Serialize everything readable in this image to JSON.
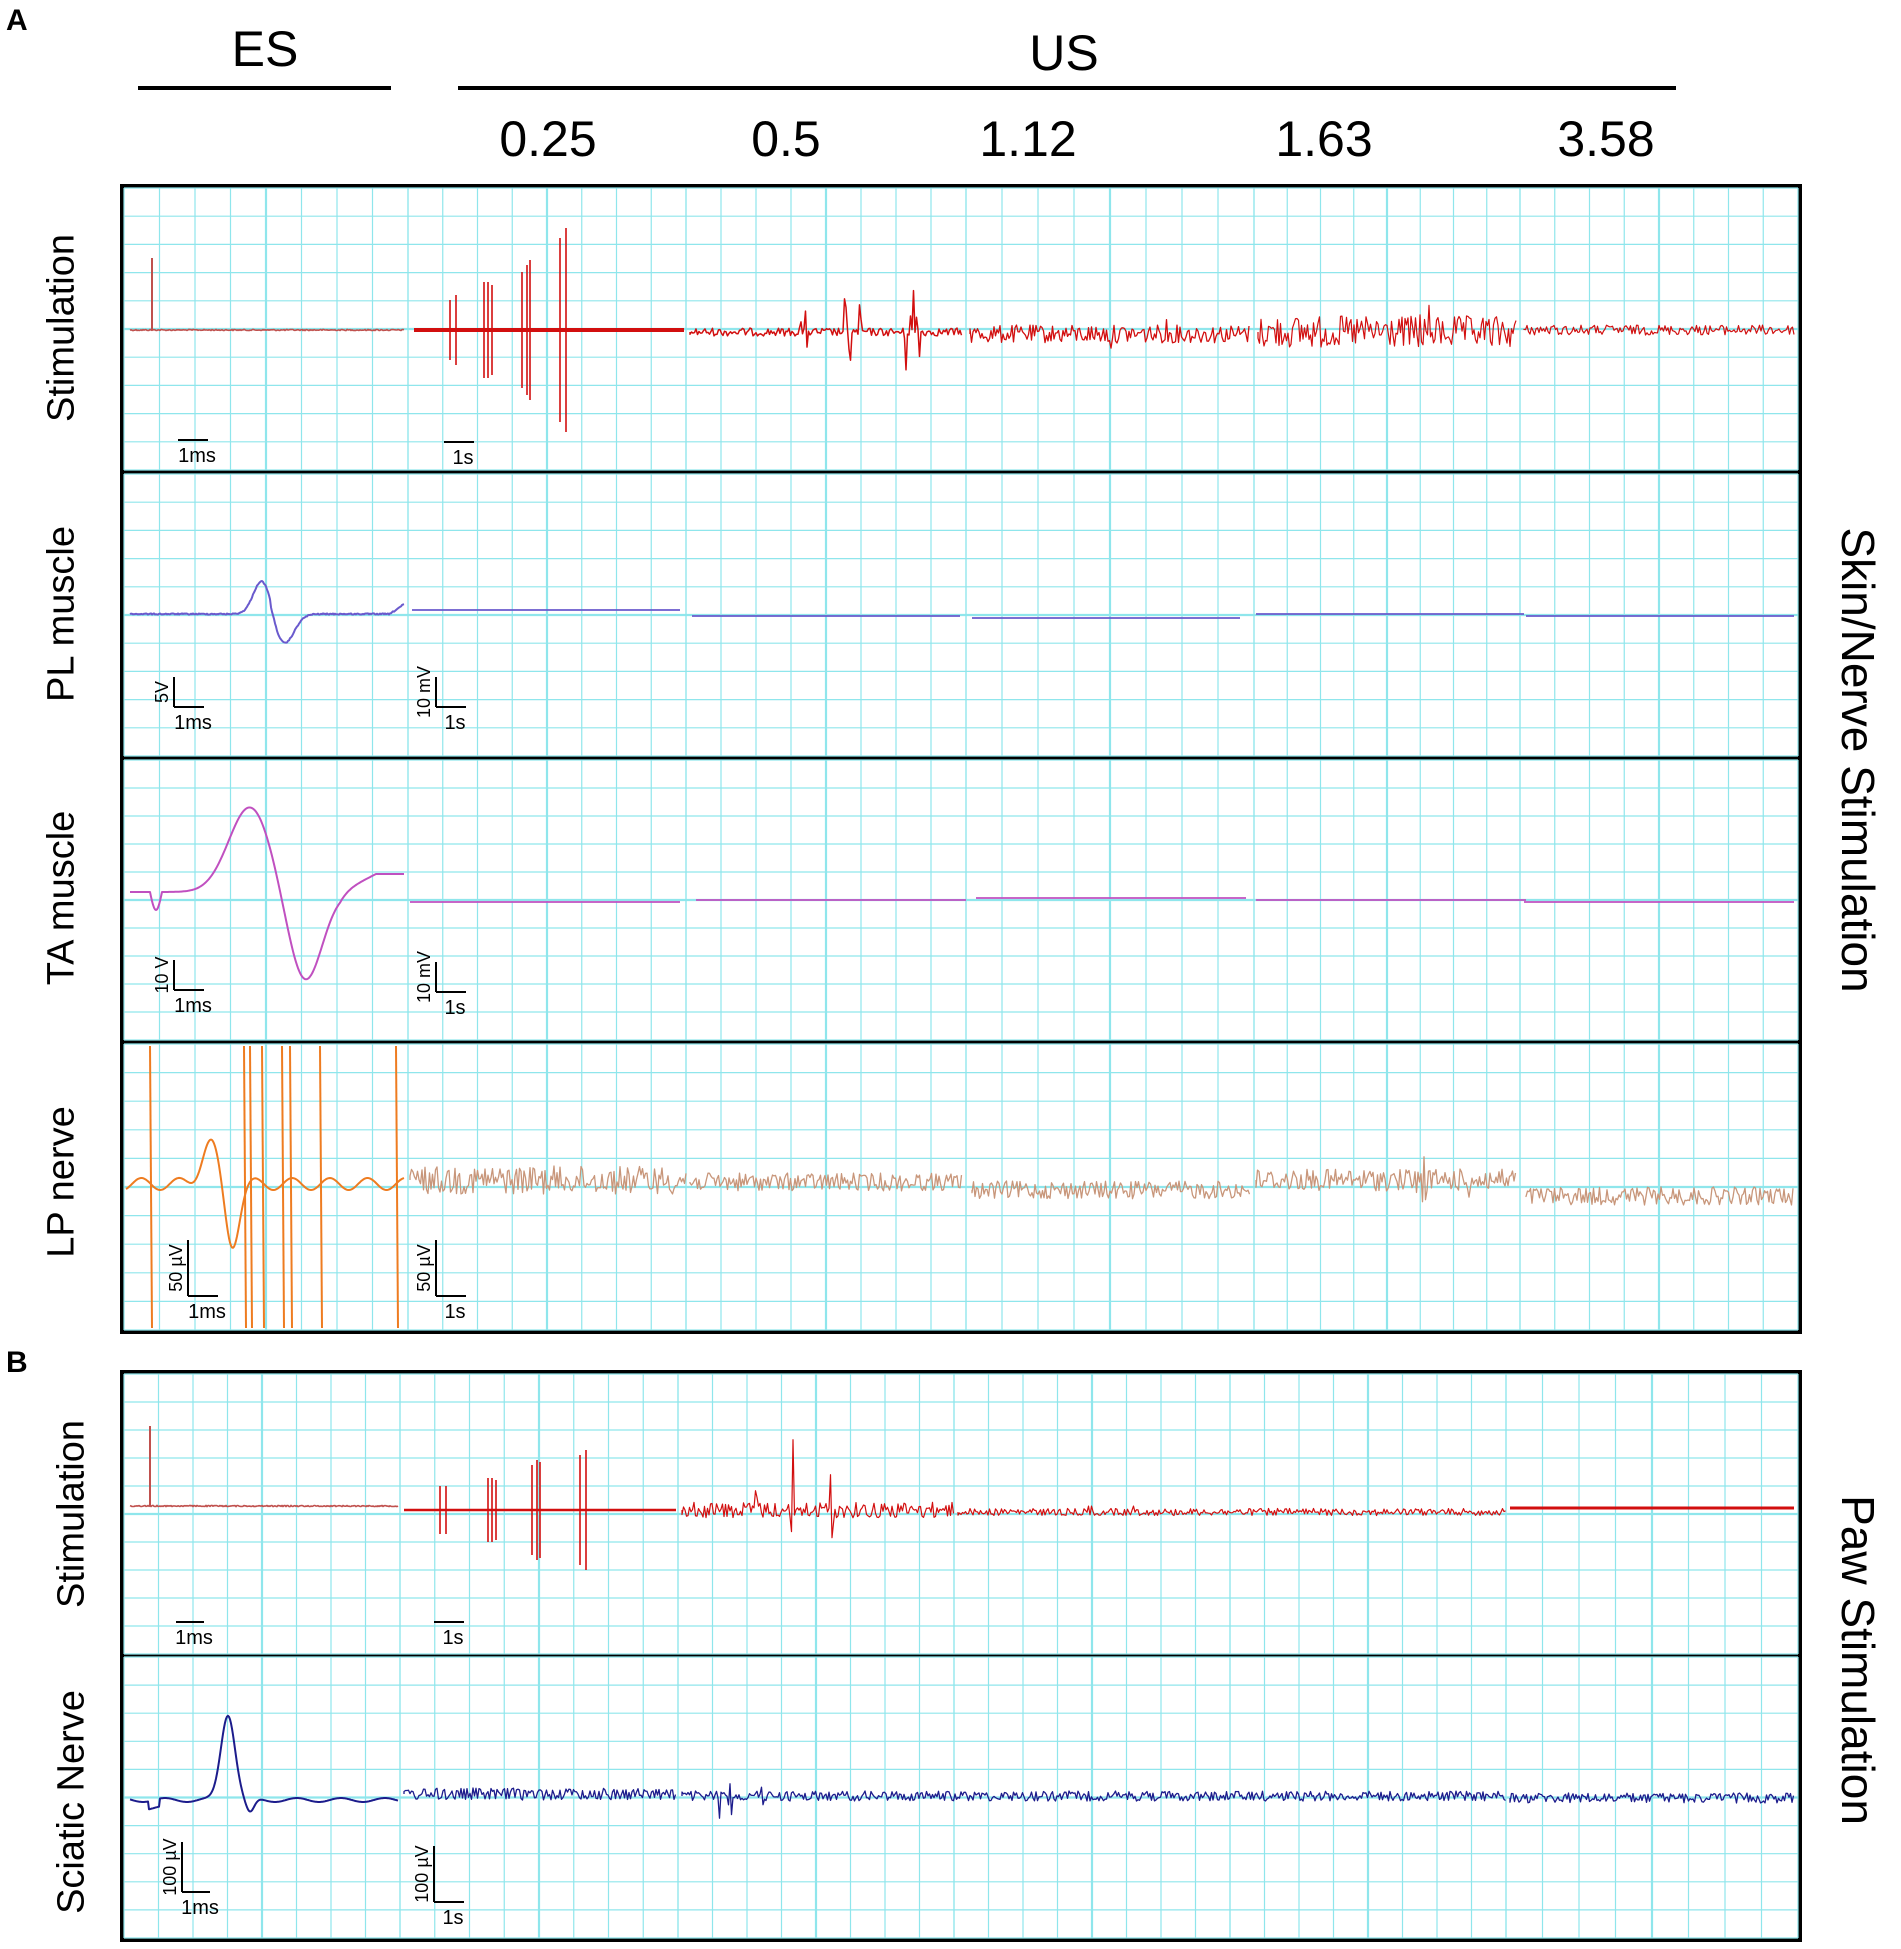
{
  "panels": {
    "a": {
      "letter": "A",
      "es_header": "ES",
      "us_header": "US",
      "amplitudes": [
        "0.25",
        "0.5",
        "1.12",
        "1.63",
        "3.58"
      ],
      "side_label": "Skin/Nerve Stimulation",
      "rows": [
        "Stimulation",
        "PL muscle",
        "TA muscle",
        "LP nerve"
      ]
    },
    "b": {
      "letter": "B",
      "side_label": "Paw Stimulation",
      "rows": [
        "Stimulation",
        "Sciatic Nerve"
      ]
    }
  },
  "scale_bars": {
    "a_stim_es": {
      "v": "",
      "t": "1ms"
    },
    "a_stim_us": {
      "v": "",
      "t": "1s"
    },
    "a_pl_es": {
      "v": "5V",
      "t": "1ms"
    },
    "a_pl_us": {
      "v": "10 mV",
      "t": "1s"
    },
    "a_ta_es": {
      "v": "10 V",
      "t": "1ms"
    },
    "a_ta_us": {
      "v": "10 mV",
      "t": "1s"
    },
    "a_lp_es": {
      "v": "50 µV",
      "t": "1ms"
    },
    "a_lp_us": {
      "v": "50 µV",
      "t": "1s"
    },
    "b_stim_es": {
      "v": "",
      "t": "1ms"
    },
    "b_stim_us": {
      "v": "",
      "t": "1s"
    },
    "b_sc_es": {
      "v": "100 µV",
      "t": "1ms"
    },
    "b_sc_us": {
      "v": "100 µV",
      "t": "1s"
    }
  },
  "colors": {
    "grid": "#8fe6ec",
    "stimulation": "#d20f0f",
    "es_stimulation": "#c0504d",
    "pl_muscle": "#6a5acd",
    "ta_muscle": "#c050c0",
    "lp_nerve_es": "#ee7c20",
    "lp_nerve_us": "#c8967a",
    "sciatic_nerve": "#1c1c8c"
  }
}
